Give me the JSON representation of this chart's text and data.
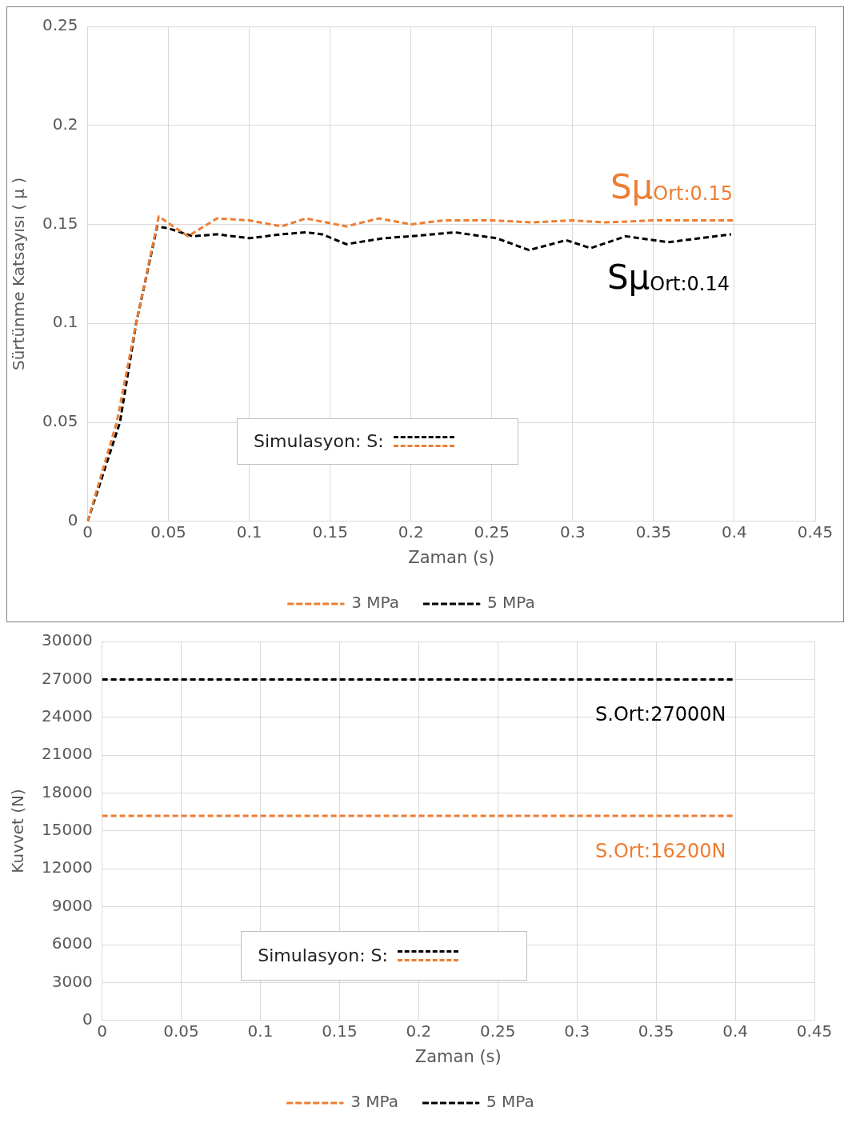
{
  "chart_data": [
    {
      "type": "line",
      "xlabel": "Zaman (s)",
      "ylabel": "Sürtünme Katsayısı ( μ )",
      "xlim": [
        0,
        0.45
      ],
      "xticks": [
        0,
        0.05,
        0.1,
        0.15,
        0.2,
        0.25,
        0.3,
        0.35,
        0.4,
        0.45
      ],
      "ylim": [
        0,
        0.25
      ],
      "yticks": [
        0,
        0.05,
        0.1,
        0.15,
        0.2,
        0.25
      ],
      "grid": true,
      "legend": "bottom",
      "marker": "none",
      "line_style": "dashed",
      "series": [
        {
          "name": "3 MPa",
          "color": "#ed7d31",
          "x": [
            0,
            0.018,
            0.03,
            0.044,
            0.062,
            0.08,
            0.1,
            0.12,
            0.135,
            0.16,
            0.18,
            0.2,
            0.22,
            0.25,
            0.275,
            0.3,
            0.32,
            0.35,
            0.4
          ],
          "values": [
            0,
            0.05,
            0.1,
            0.154,
            0.144,
            0.153,
            0.152,
            0.149,
            0.153,
            0.149,
            0.153,
            0.15,
            0.152,
            0.152,
            0.151,
            0.152,
            0.151,
            0.152,
            0.152
          ]
        },
        {
          "name": "5 MPa",
          "color": "#000000",
          "x": [
            0,
            0.02,
            0.03,
            0.043,
            0.05,
            0.065,
            0.08,
            0.1,
            0.12,
            0.135,
            0.145,
            0.16,
            0.183,
            0.2,
            0.227,
            0.253,
            0.273,
            0.296,
            0.311,
            0.333,
            0.359,
            0.398
          ],
          "values": [
            0,
            0.05,
            0.1,
            0.149,
            0.148,
            0.144,
            0.145,
            0.143,
            0.145,
            0.146,
            0.145,
            0.14,
            0.143,
            0.144,
            0.146,
            0.143,
            0.137,
            0.142,
            0.138,
            0.144,
            0.141,
            0.145
          ]
        }
      ],
      "annotations": [
        "Sμ$_{Ort:0.15}$",
        "Sμ$_{Ort:0.14}$",
        "Simulasyon: S:"
      ]
    },
    {
      "type": "line",
      "xlabel": "Zaman (s)",
      "ylabel": "Kuvvet (N)",
      "xlim": [
        0,
        0.45
      ],
      "xticks": [
        0,
        0.05,
        0.1,
        0.15,
        0.2,
        0.25,
        0.3,
        0.35,
        0.4,
        0.45
      ],
      "ylim": [
        0,
        30000
      ],
      "yticks": [
        0,
        3000,
        6000,
        9000,
        12000,
        15000,
        18000,
        21000,
        24000,
        27000,
        30000
      ],
      "grid": true,
      "legend": "bottom",
      "marker": "none",
      "line_style": "dashed",
      "series": [
        {
          "name": "3 MPa",
          "color": "#ed7d31",
          "x": [
            0,
            0.4
          ],
          "values": [
            16200,
            16200
          ]
        },
        {
          "name": "5 MPa",
          "color": "#000000",
          "x": [
            0,
            0.4
          ],
          "values": [
            27000,
            27000
          ]
        }
      ],
      "annotations": [
        "S.Ort:16200N",
        "S.Ort:27000N",
        "Simulasyon: S:"
      ]
    }
  ]
}
